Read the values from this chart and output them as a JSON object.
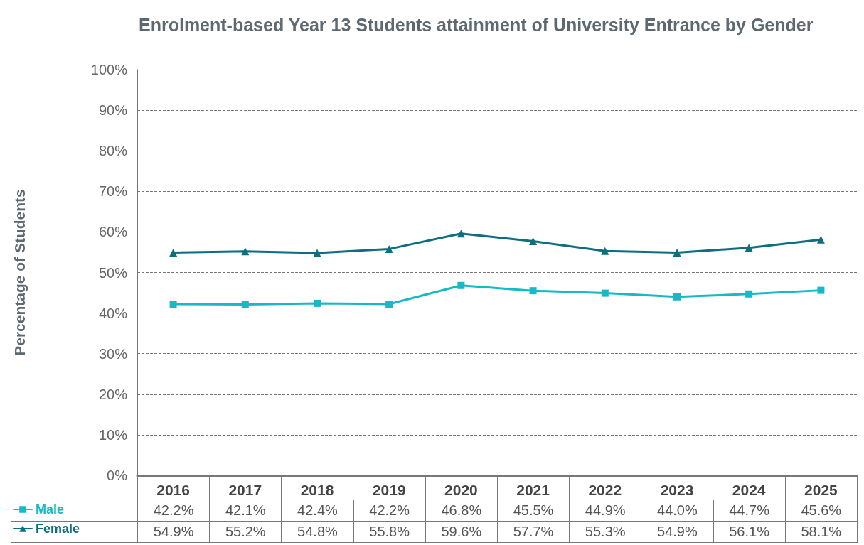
{
  "chart_data": {
    "type": "line",
    "title": "Enrolment-based Year 13 Students attainment of University Entrance by Gender",
    "ylabel": "Percentage of Students",
    "categories": [
      "2016",
      "2017",
      "2018",
      "2019",
      "2020",
      "2021",
      "2022",
      "2023",
      "2024",
      "2025"
    ],
    "series": [
      {
        "name": "Male",
        "color": "#17b9c6",
        "marker": "square",
        "values": [
          42.2,
          42.1,
          42.4,
          42.2,
          46.8,
          45.5,
          44.9,
          44.0,
          44.7,
          45.6
        ],
        "value_labels": [
          "42.2%",
          "42.1%",
          "42.4%",
          "42.2%",
          "46.8%",
          "45.5%",
          "44.9%",
          "44.0%",
          "44.7%",
          "45.6%"
        ]
      },
      {
        "name": "Female",
        "color": "#0d6e80",
        "marker": "triangle",
        "values": [
          54.9,
          55.2,
          54.8,
          55.8,
          59.6,
          57.7,
          55.3,
          54.9,
          56.1,
          58.1
        ],
        "value_labels": [
          "54.9%",
          "55.2%",
          "54.8%",
          "55.8%",
          "59.6%",
          "57.7%",
          "55.3%",
          "54.9%",
          "56.1%",
          "58.1%"
        ]
      }
    ],
    "ylim": [
      0,
      100
    ],
    "yticks": [
      {
        "value": 0,
        "label": "0%"
      },
      {
        "value": 10,
        "label": "10%"
      },
      {
        "value": 20,
        "label": "20%"
      },
      {
        "value": 30,
        "label": "30%"
      },
      {
        "value": 40,
        "label": "40%"
      },
      {
        "value": 50,
        "label": "50%"
      },
      {
        "value": 60,
        "label": "60%"
      },
      {
        "value": 70,
        "label": "70%"
      },
      {
        "value": 80,
        "label": "80%"
      },
      {
        "value": 90,
        "label": "90%"
      },
      {
        "value": 100,
        "label": "100%"
      }
    ],
    "grid": "y",
    "legend": "bottom left",
    "line_style": "solid"
  }
}
